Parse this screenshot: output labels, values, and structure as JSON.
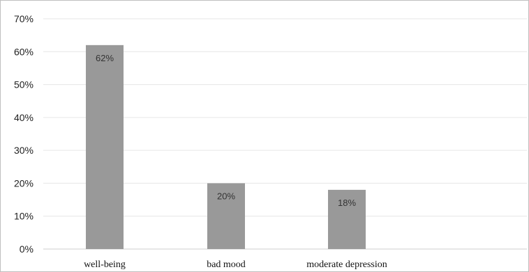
{
  "chart_data": {
    "type": "bar",
    "categories": [
      "well-being",
      "bad mood",
      "moderate depression"
    ],
    "values": [
      62,
      20,
      18
    ],
    "data_labels": [
      "62%",
      "20%",
      "18%"
    ],
    "y_ticks": [
      "0%",
      "10%",
      "20%",
      "30%",
      "40%",
      "50%",
      "60%",
      "70%"
    ],
    "ylim": [
      0,
      70
    ],
    "y_tick_step": 10,
    "grid": true,
    "bar_color": "#999999",
    "grid_color": "#e6e6e6",
    "title": "",
    "xlabel": "",
    "ylabel": ""
  }
}
